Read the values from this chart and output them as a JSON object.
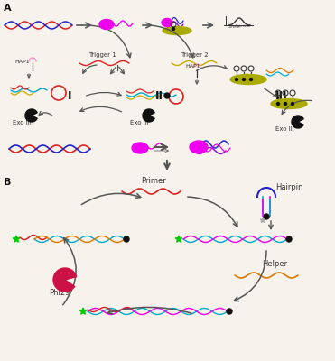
{
  "bg_color": "#f7f3ec",
  "label_A": "A",
  "label_B": "B",
  "label_I": "I",
  "label_II": "II",
  "label_III": "III",
  "trigger1": "Trigger 1",
  "trigger2": "Trigger 2",
  "hap1": "HAP1",
  "exo3": "Exo III",
  "primer": "Primer",
  "hairpin": "Hairpin",
  "helper": "Helper",
  "phi29": "Phi29",
  "colors": {
    "red": "#dd2222",
    "blue": "#2222cc",
    "magenta": "#ee00ee",
    "dark_magenta": "#aa00aa",
    "purple": "#8800cc",
    "cyan": "#00aacc",
    "yellow": "#ccaa00",
    "green": "#00cc00",
    "olive": "#888800",
    "pink": "#ff88cc",
    "orange": "#dd7700",
    "crimson": "#cc1144",
    "black": "#111111",
    "gray": "#555555",
    "dark_gray": "#333333",
    "light_gray": "#aaaaaa",
    "gold_disk": "#aaaa00"
  }
}
